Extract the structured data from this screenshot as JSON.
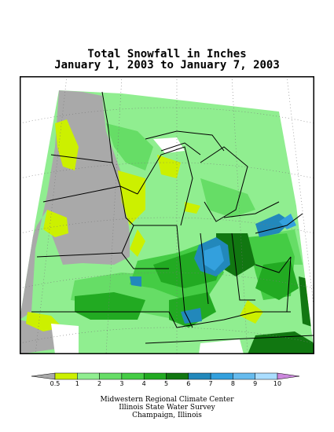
{
  "title": "Total Snowfall in Inches",
  "subtitle": "January 1, 2003 to January 7, 2003",
  "legend": {
    "labels": [
      "0.5",
      "1",
      "2",
      "3",
      "4",
      "5",
      "6",
      "7",
      "8",
      "9",
      "10"
    ],
    "colors": [
      "#a9a9a9",
      "#ccf000",
      "#90ee90",
      "#66dd66",
      "#44cc44",
      "#22aa22",
      "#117711",
      "#2288bb",
      "#33a0dd",
      "#66bbee",
      "#aaddff",
      "#cc88dd"
    ]
  },
  "credits": [
    "Midwestern Regional Climate Center",
    "Illinois State Water Survey",
    "Champaign, Illinois"
  ]
}
